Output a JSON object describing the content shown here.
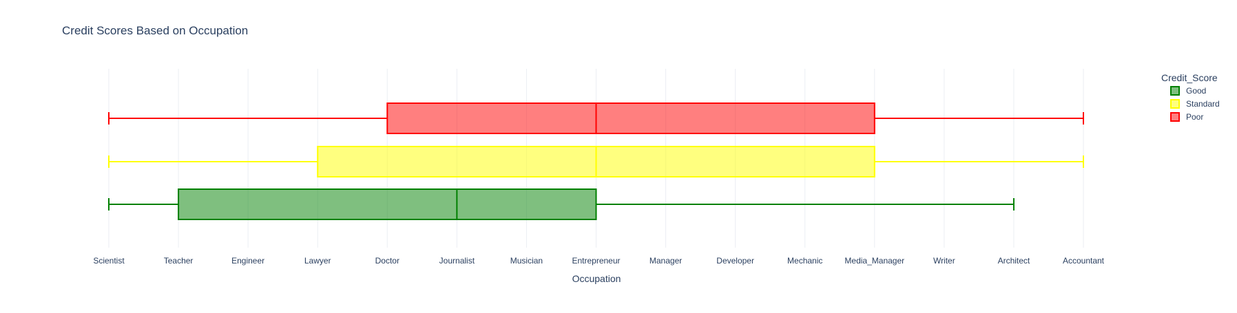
{
  "chart_data": {
    "type": "box",
    "orientation": "horizontal",
    "title": "Credit Scores Based on Occupation",
    "xlabel": "Occupation",
    "ylabel": "",
    "categories": [
      "Scientist",
      "Teacher",
      "Engineer",
      "Lawyer",
      "Doctor",
      "Journalist",
      "Musician",
      "Entrepreneur",
      "Manager",
      "Developer",
      "Mechanic",
      "Media_Manager",
      "Writer",
      "Architect",
      "Accountant"
    ],
    "legend": {
      "title": "Credit_Score",
      "placement": "top-right"
    },
    "grid": true,
    "series": [
      {
        "name": "Good",
        "color": "#008000",
        "fill": "rgba(0,128,0,0.5)",
        "min": "Scientist",
        "q1": "Teacher",
        "median": "Journalist",
        "q3": "Entrepreneur",
        "max": "Architect"
      },
      {
        "name": "Standard",
        "color": "#ffff00",
        "fill": "rgba(255,255,0,0.5)",
        "min": "Scientist",
        "q1": "Lawyer",
        "median": "Entrepreneur",
        "q3": "Media_Manager",
        "max": "Accountant"
      },
      {
        "name": "Poor",
        "color": "#ff0000",
        "fill": "rgba(255,0,0,0.5)",
        "min": "Scientist",
        "q1": "Doctor",
        "median": "Entrepreneur",
        "q3": "Media_Manager",
        "max": "Accountant"
      }
    ]
  }
}
